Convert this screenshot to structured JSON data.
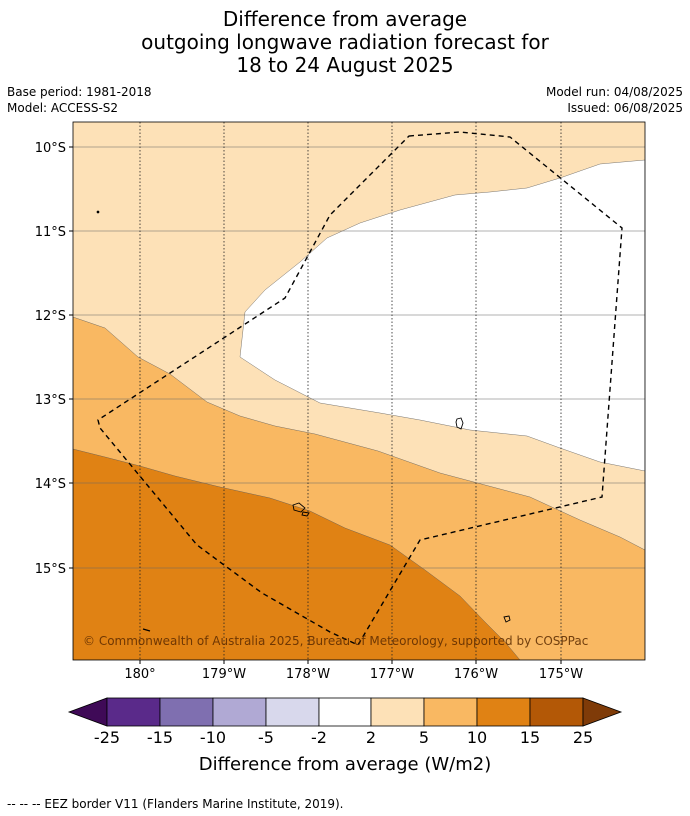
{
  "title": {
    "line1": "Difference from average",
    "line2": "outgoing longwave radiation forecast for",
    "line3": "18 to 24 August 2025"
  },
  "meta": {
    "base_period": "Base period: 1981-2018",
    "model": "Model: ACCESS-S2",
    "model_run": "Model run: 04/08/2025",
    "issued": "Issued: 06/08/2025"
  },
  "map": {
    "lat_labels": [
      "10°S",
      "11°S",
      "12°S",
      "13°S",
      "14°S",
      "15°S"
    ],
    "lon_labels": [
      "180°",
      "179°W",
      "178°W",
      "177°W",
      "176°W",
      "175°W"
    ],
    "credit": "© Commonwealth of Australia 2025, Bureau of Meteorology, supported by COSPPac"
  },
  "colorbar": {
    "labels": [
      "-25",
      "-15",
      "-10",
      "-5",
      "-2",
      "2",
      "5",
      "10",
      "15",
      "25"
    ],
    "colors": [
      "#3f0a57",
      "#5a2a8a",
      "#7f6fb0",
      "#b0a9d4",
      "#d8d8ec",
      "#ffffff",
      "#fde1b7",
      "#f9b862",
      "#e08214",
      "#b35806",
      "#7f3b08"
    ],
    "title": "Difference from average (W/m2)"
  },
  "legend": {
    "eez_text": "--  --  -- EEZ border V11 (Flanders Marine Institute, 2019)."
  }
}
